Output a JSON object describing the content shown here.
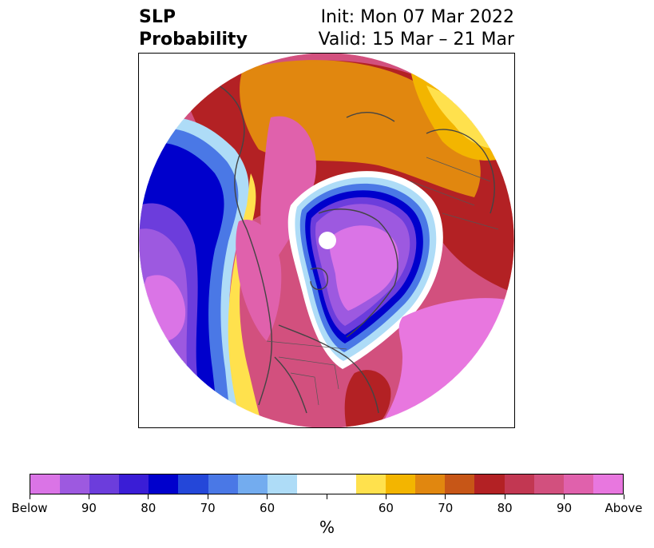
{
  "title": {
    "left_line1": "SLP",
    "left_line2": "Probability",
    "right_line1": "Init: Mon 07 Mar 2022",
    "right_line2": "Valid: 15 Mar – 21 Mar"
  },
  "colorbar": {
    "colors": [
      "#da74e6",
      "#9d59e0",
      "#6c3ddc",
      "#3a1dd6",
      "#0000cc",
      "#2447d9",
      "#4a78e6",
      "#73acef",
      "#aedcf7",
      "#ffffff",
      "#ffffff",
      "#ffe14d",
      "#f3b500",
      "#e1870f",
      "#c75617",
      "#b32124",
      "#c23752",
      "#d2507e",
      "#e061ac",
      "#e877df"
    ],
    "labels": [
      "Below",
      "90",
      "80",
      "70",
      "60",
      "",
      "60",
      "70",
      "80",
      "90",
      "Above"
    ],
    "unit": "%"
  },
  "map": {
    "projection": "polar-stereographic",
    "center": "North Pole",
    "colors": {
      "strong_above": "#e877df",
      "above": "#d2507e",
      "red": "#b32124",
      "orange": "#e1870f",
      "gold": "#f3b500",
      "yellow": "#ffe14d",
      "white": "#ffffff",
      "light_blue": "#aedcf7",
      "blue": "#4a78e6",
      "deep_blue": "#0000cc",
      "violet": "#6c3ddc",
      "purple": "#9d59e0",
      "strong_below": "#da74e6"
    }
  }
}
